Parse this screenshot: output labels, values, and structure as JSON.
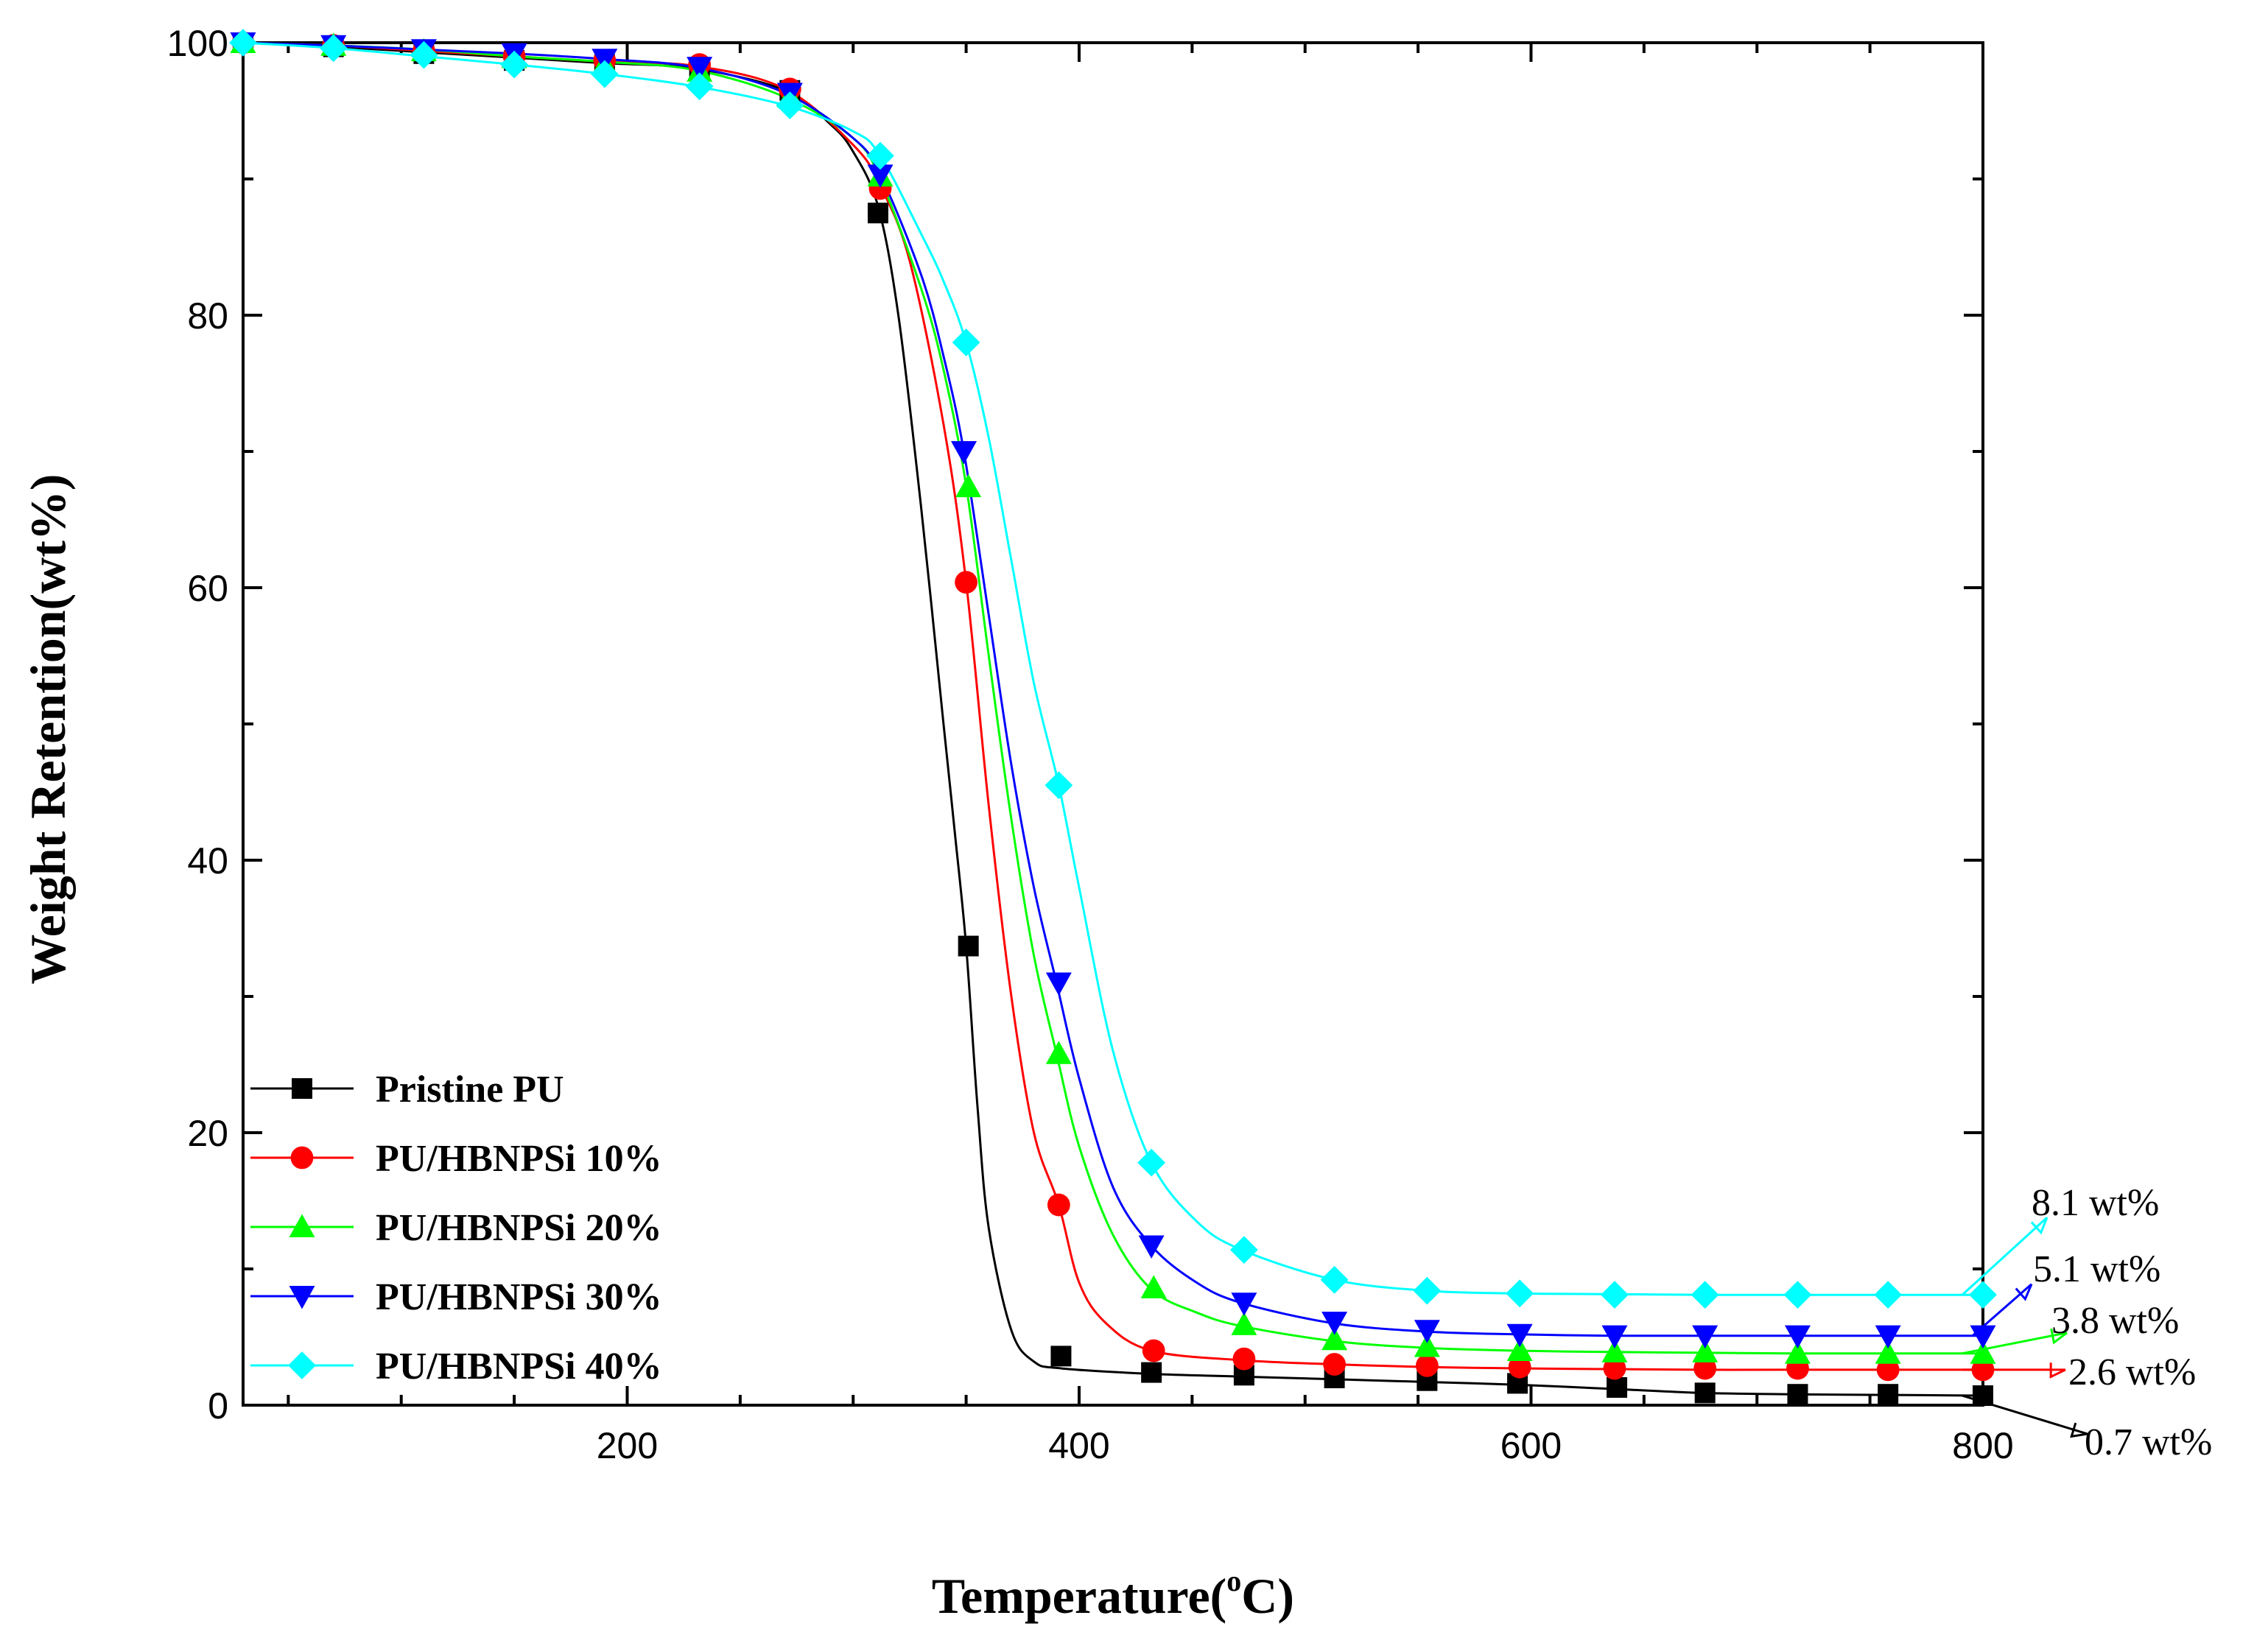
{
  "chart_data": {
    "type": "line",
    "title": "",
    "xlabel": "Temperature(°C)",
    "xlabel_parts": {
      "main": "Temperature(",
      "sup": "o",
      "unit": "C)"
    },
    "ylabel": "Weight Retention(wt%)",
    "xlim": [
      30,
      800
    ],
    "ylim": [
      0,
      100
    ],
    "x_ticks": [
      200,
      400,
      600,
      800
    ],
    "y_ticks": [
      0,
      20,
      40,
      60,
      80,
      100
    ],
    "grid": false,
    "legend_position": "bottom-left",
    "series": [
      {
        "name": "Pristine PU",
        "color": "#000000",
        "marker": "square",
        "curve": [
          [
            30,
            100
          ],
          [
            70,
            99.7
          ],
          [
            110,
            99.3
          ],
          [
            150,
            98.9
          ],
          [
            190,
            98.5
          ],
          [
            230,
            98.1
          ],
          [
            270,
            96.5
          ],
          [
            290,
            94
          ],
          [
            300,
            92
          ],
          [
            311,
            88
          ],
          [
            320,
            80
          ],
          [
            330,
            66
          ],
          [
            340,
            50
          ],
          [
            345,
            42
          ],
          [
            350,
            33.7
          ],
          [
            355,
            22
          ],
          [
            360,
            13
          ],
          [
            370,
            5.5
          ],
          [
            380,
            3.2
          ],
          [
            392,
            2.7
          ],
          [
            432,
            2.3
          ],
          [
            472,
            2.1
          ],
          [
            513,
            1.9
          ],
          [
            554,
            1.7
          ],
          [
            594,
            1.5
          ],
          [
            635,
            1.2
          ],
          [
            675,
            0.9
          ],
          [
            715,
            0.8
          ],
          [
            760,
            0.75
          ],
          [
            800,
            0.7
          ]
        ],
        "markers": [
          [
            30,
            100
          ],
          [
            70,
            99.7
          ],
          [
            110,
            99.2
          ],
          [
            150,
            98.7
          ],
          [
            190,
            98.4
          ],
          [
            232,
            98.2
          ],
          [
            272,
            96.5
          ],
          [
            311,
            87.5
          ],
          [
            351,
            33.7
          ],
          [
            392,
            3.6
          ],
          [
            432,
            2.4
          ],
          [
            473,
            2.2
          ],
          [
            513,
            2.0
          ],
          [
            554,
            1.8
          ],
          [
            594,
            1.6
          ],
          [
            638,
            1.3
          ],
          [
            677,
            0.9
          ],
          [
            718,
            0.8
          ],
          [
            758,
            0.8
          ],
          [
            800,
            0.7
          ]
        ],
        "end_label": "0.7 wt%",
        "end_label_value": 0.7
      },
      {
        "name": "PU/HBNPSi 10%",
        "color": "#ff0000",
        "marker": "circle",
        "curve": [
          [
            30,
            100
          ],
          [
            70,
            99.8
          ],
          [
            110,
            99.4
          ],
          [
            150,
            99
          ],
          [
            190,
            98.6
          ],
          [
            230,
            98.3
          ],
          [
            270,
            96.6
          ],
          [
            300,
            92.5
          ],
          [
            312,
            89.5
          ],
          [
            325,
            84
          ],
          [
            340,
            72
          ],
          [
            350,
            60.4
          ],
          [
            360,
            44
          ],
          [
            370,
            30
          ],
          [
            380,
            20
          ],
          [
            391,
            14.7
          ],
          [
            400,
            9
          ],
          [
            412,
            6
          ],
          [
            432,
            4.0
          ],
          [
            472,
            3.3
          ],
          [
            513,
            3.0
          ],
          [
            554,
            2.8
          ],
          [
            594,
            2.7
          ],
          [
            635,
            2.65
          ],
          [
            675,
            2.6
          ],
          [
            715,
            2.6
          ],
          [
            760,
            2.6
          ],
          [
            800,
            2.6
          ]
        ],
        "markers": [
          [
            30,
            100
          ],
          [
            70,
            99.8
          ],
          [
            110,
            99.4
          ],
          [
            150,
            99.0
          ],
          [
            190,
            98.7
          ],
          [
            232,
            98.4
          ],
          [
            272,
            96.6
          ],
          [
            312,
            89.3
          ],
          [
            350,
            60.4
          ],
          [
            391,
            14.7
          ],
          [
            433,
            4.0
          ],
          [
            473,
            3.4
          ],
          [
            513,
            3.0
          ],
          [
            554,
            2.9
          ],
          [
            595,
            2.8
          ],
          [
            637,
            2.7
          ],
          [
            677,
            2.7
          ],
          [
            718,
            2.7
          ],
          [
            758,
            2.6
          ],
          [
            800,
            2.6
          ]
        ],
        "end_label": "2.6 wt%",
        "end_label_value": 2.6
      },
      {
        "name": "PU/HBNPSi 20%",
        "color": "#00ff00",
        "marker": "triangle-up",
        "curve": [
          [
            30,
            100
          ],
          [
            70,
            99.8
          ],
          [
            110,
            99.5
          ],
          [
            150,
            99
          ],
          [
            190,
            98.6
          ],
          [
            230,
            98
          ],
          [
            270,
            96
          ],
          [
            300,
            93
          ],
          [
            312,
            90
          ],
          [
            330,
            82
          ],
          [
            340,
            76
          ],
          [
            350,
            67.5
          ],
          [
            360,
            55
          ],
          [
            370,
            43
          ],
          [
            380,
            33
          ],
          [
            390,
            25.8
          ],
          [
            400,
            19
          ],
          [
            415,
            12.5
          ],
          [
            432,
            8.5
          ],
          [
            452,
            6.8
          ],
          [
            472,
            5.8
          ],
          [
            513,
            4.7
          ],
          [
            554,
            4.2
          ],
          [
            594,
            4.0
          ],
          [
            635,
            3.9
          ],
          [
            675,
            3.85
          ],
          [
            715,
            3.8
          ],
          [
            760,
            3.8
          ],
          [
            800,
            3.8
          ]
        ],
        "markers": [
          [
            30,
            100
          ],
          [
            70,
            99.8
          ],
          [
            110,
            99.4
          ],
          [
            150,
            98.9
          ],
          [
            190,
            98.4
          ],
          [
            232,
            97.9
          ],
          [
            272,
            96.0
          ],
          [
            312,
            90.2
          ],
          [
            351,
            67.4
          ],
          [
            391,
            25.8
          ],
          [
            433,
            8.6
          ],
          [
            473,
            5.9
          ],
          [
            513,
            4.8
          ],
          [
            554,
            4.3
          ],
          [
            595,
            4.0
          ],
          [
            637,
            3.9
          ],
          [
            677,
            3.9
          ],
          [
            718,
            3.8
          ],
          [
            758,
            3.8
          ],
          [
            800,
            3.8
          ]
        ],
        "end_label": "3.8 wt%",
        "end_label_value": 3.8
      },
      {
        "name": "PU/HBNPSi 30%",
        "color": "#0000ff",
        "marker": "triangle-down",
        "curve": [
          [
            30,
            100
          ],
          [
            70,
            99.8
          ],
          [
            110,
            99.5
          ],
          [
            150,
            99.2
          ],
          [
            190,
            98.8
          ],
          [
            230,
            98.2
          ],
          [
            270,
            96.3
          ],
          [
            300,
            93
          ],
          [
            312,
            90.3
          ],
          [
            330,
            83
          ],
          [
            340,
            77
          ],
          [
            349,
            70
          ],
          [
            360,
            58
          ],
          [
            370,
            47
          ],
          [
            380,
            38
          ],
          [
            390,
            31
          ],
          [
            400,
            24
          ],
          [
            415,
            16
          ],
          [
            432,
            11.7
          ],
          [
            452,
            9
          ],
          [
            472,
            7.5
          ],
          [
            513,
            6.0
          ],
          [
            554,
            5.4
          ],
          [
            594,
            5.2
          ],
          [
            635,
            5.1
          ],
          [
            675,
            5.1
          ],
          [
            715,
            5.1
          ],
          [
            760,
            5.1
          ],
          [
            800,
            5.1
          ]
        ],
        "markers": [
          [
            30,
            100
          ],
          [
            70,
            99.8
          ],
          [
            110,
            99.5
          ],
          [
            150,
            99.2
          ],
          [
            190,
            98.8
          ],
          [
            232,
            98.2
          ],
          [
            272,
            96.3
          ],
          [
            312,
            90.3
          ],
          [
            349,
            70.0
          ],
          [
            391,
            31.0
          ],
          [
            432,
            11.7
          ],
          [
            473,
            7.5
          ],
          [
            513,
            6.1
          ],
          [
            554,
            5.5
          ],
          [
            595,
            5.2
          ],
          [
            637,
            5.1
          ],
          [
            677,
            5.1
          ],
          [
            718,
            5.1
          ],
          [
            758,
            5.1
          ],
          [
            800,
            5.1
          ]
        ],
        "end_label": "5.1 wt%",
        "end_label_value": 5.1
      },
      {
        "name": "PU/HBNPSi 40%",
        "color": "#00ffff",
        "marker": "diamond",
        "curve": [
          [
            30,
            100
          ],
          [
            70,
            99.6
          ],
          [
            110,
            99
          ],
          [
            150,
            98.4
          ],
          [
            190,
            97.7
          ],
          [
            230,
            96.8
          ],
          [
            270,
            95.4
          ],
          [
            300,
            93.5
          ],
          [
            312,
            91.7
          ],
          [
            330,
            86
          ],
          [
            340,
            82.5
          ],
          [
            350,
            78
          ],
          [
            360,
            71
          ],
          [
            370,
            62
          ],
          [
            380,
            53
          ],
          [
            391,
            45.5
          ],
          [
            400,
            38
          ],
          [
            415,
            26
          ],
          [
            432,
            17.8
          ],
          [
            452,
            13.5
          ],
          [
            472,
            11.4
          ],
          [
            513,
            9.2
          ],
          [
            554,
            8.4
          ],
          [
            594,
            8.2
          ],
          [
            635,
            8.15
          ],
          [
            675,
            8.1
          ],
          [
            715,
            8.1
          ],
          [
            760,
            8.1
          ],
          [
            800,
            8.1
          ]
        ],
        "markers": [
          [
            30,
            100
          ],
          [
            70,
            99.6
          ],
          [
            110,
            99.1
          ],
          [
            150,
            98.4
          ],
          [
            190,
            97.7
          ],
          [
            232,
            96.8
          ],
          [
            272,
            95.4
          ],
          [
            312,
            91.7
          ],
          [
            350,
            78.0
          ],
          [
            391,
            45.5
          ],
          [
            432,
            17.8
          ],
          [
            473,
            11.4
          ],
          [
            513,
            9.2
          ],
          [
            554,
            8.4
          ],
          [
            595,
            8.2
          ],
          [
            637,
            8.1
          ],
          [
            677,
            8.1
          ],
          [
            718,
            8.1
          ],
          [
            758,
            8.1
          ],
          [
            800,
            8.1
          ]
        ],
        "end_label": "8.1 wt%",
        "end_label_value": 8.1
      }
    ]
  }
}
